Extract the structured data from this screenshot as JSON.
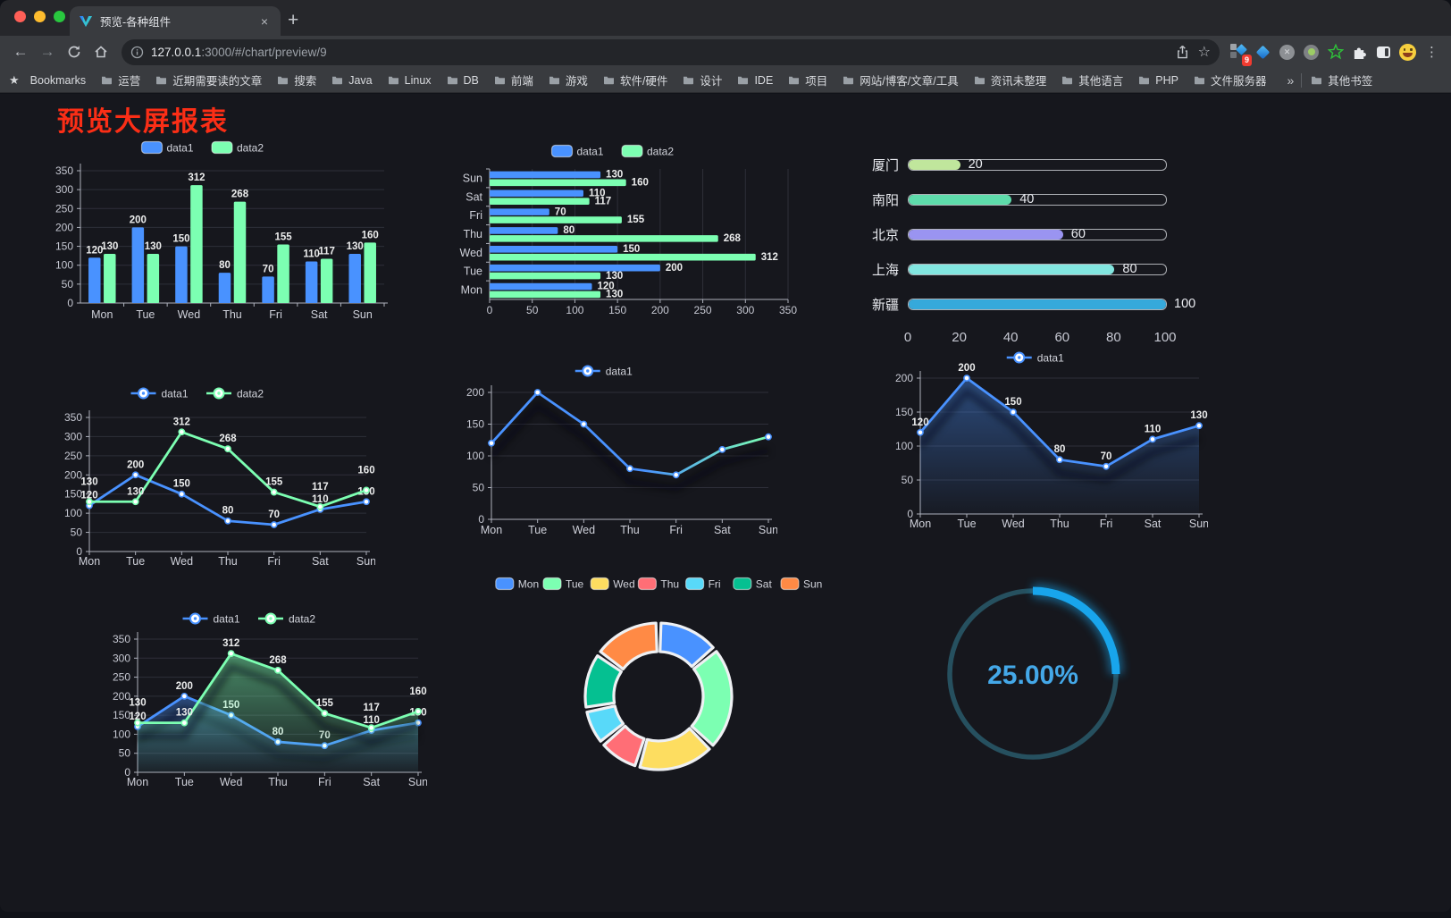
{
  "browser": {
    "tab_title": "预览-各种组件",
    "close_tab_glyph": "×",
    "new_tab_glyph": "+",
    "url_host": "127.0.0.1",
    "url_rest": ":3000/#/chart/preview/9",
    "extension_badge": "9",
    "menu_glyph": "⋮",
    "bookmarks_bar": {
      "label": "Bookmarks",
      "folders": [
        "运营",
        "近期需要读的文章",
        "搜索",
        "Java",
        "Linux",
        "DB",
        "前端",
        "游戏",
        "软件/硬件",
        "设计",
        "IDE",
        "项目",
        "网站/博客/文章/工具",
        "资讯未整理",
        "其他语言",
        "PHP",
        "文件服务器"
      ],
      "overflow": "»",
      "other": "其他书签"
    }
  },
  "page": {
    "title": "预览大屏报表",
    "title_color": "#fb2e16"
  },
  "theme": {
    "blue": "#4992ff",
    "green": "#7cffb2",
    "axis": "#aeb1bc",
    "tick_text": "#c6c8d2",
    "grid": "#2e2f39",
    "value_label": "#eceded"
  },
  "chart_data": [
    {
      "id": "c1",
      "type": "bar",
      "categories": [
        "Mon",
        "Tue",
        "Wed",
        "Thu",
        "Fri",
        "Sat",
        "Sun"
      ],
      "series": [
        {
          "name": "data1",
          "color": "#4992ff",
          "values": [
            120,
            200,
            150,
            80,
            70,
            110,
            130
          ]
        },
        {
          "name": "data2",
          "color": "#7cffb2",
          "values": [
            130,
            130,
            312,
            268,
            155,
            117,
            160
          ]
        }
      ],
      "ylim": [
        0,
        350
      ],
      "yticks": [
        0,
        50,
        100,
        150,
        200,
        250,
        300,
        350
      ],
      "legend_position": "top"
    },
    {
      "id": "c2",
      "type": "bar-horizontal",
      "categories": [
        "Mon",
        "Tue",
        "Wed",
        "Thu",
        "Fri",
        "Sat",
        "Sun"
      ],
      "category_order_top_to_bottom": [
        "Sun",
        "Sat",
        "Fri",
        "Thu",
        "Wed",
        "Tue",
        "Mon"
      ],
      "series": [
        {
          "name": "data1",
          "color": "#4992ff",
          "values": [
            120,
            200,
            150,
            80,
            70,
            110,
            130
          ]
        },
        {
          "name": "data2",
          "color": "#7cffb2",
          "values": [
            130,
            130,
            312,
            268,
            155,
            117,
            160
          ]
        }
      ],
      "xlim": [
        0,
        350
      ],
      "xticks": [
        0,
        50,
        100,
        150,
        200,
        250,
        300,
        350
      ],
      "legend_position": "top"
    },
    {
      "id": "c3",
      "type": "progress-bars",
      "max": 100,
      "xticks": [
        0,
        20,
        40,
        60,
        80,
        100
      ],
      "rows": [
        {
          "label": "厦门",
          "value": 20,
          "color": "#c0e69c"
        },
        {
          "label": "南阳",
          "value": 40,
          "color": "#5edcab"
        },
        {
          "label": "北京",
          "value": 60,
          "color": "#9a94f1"
        },
        {
          "label": "上海",
          "value": 80,
          "color": "#82e6e0"
        },
        {
          "label": "新疆",
          "value": 100,
          "color": "#36a9db"
        }
      ]
    },
    {
      "id": "c4",
      "type": "line",
      "categories": [
        "Mon",
        "Tue",
        "Wed",
        "Thu",
        "Fri",
        "Sat",
        "Sun"
      ],
      "series": [
        {
          "name": "data1",
          "color": "#4992ff",
          "values": [
            120,
            200,
            150,
            80,
            70,
            110,
            130
          ]
        },
        {
          "name": "data2",
          "color": "#7cffb2",
          "values": [
            130,
            130,
            312,
            268,
            155,
            117,
            160
          ]
        }
      ],
      "ylim": [
        0,
        350
      ],
      "yticks": [
        0,
        50,
        100,
        150,
        200,
        250,
        300,
        350
      ],
      "show_labels": true
    },
    {
      "id": "c5",
      "type": "line",
      "categories": [
        "Mon",
        "Tue",
        "Wed",
        "Thu",
        "Fri",
        "Sat",
        "Sun"
      ],
      "series": [
        {
          "name": "data1",
          "gradient": [
            "#4992ff",
            "#7cffb2"
          ],
          "values": [
            120,
            200,
            150,
            80,
            70,
            110,
            130
          ]
        }
      ],
      "ylim": [
        0,
        200
      ],
      "yticks": [
        0,
        50,
        100,
        150,
        200
      ],
      "show_labels": false,
      "shadow": true
    },
    {
      "id": "c6",
      "type": "area",
      "categories": [
        "Mon",
        "Tue",
        "Wed",
        "Thu",
        "Fri",
        "Sat",
        "Sun"
      ],
      "series": [
        {
          "name": "data1",
          "color": "#4992ff",
          "values": [
            120,
            200,
            150,
            80,
            70,
            110,
            130
          ]
        }
      ],
      "ylim": [
        0,
        200
      ],
      "yticks": [
        0,
        50,
        100,
        150,
        200
      ],
      "show_labels": true,
      "shadow": true
    },
    {
      "id": "c7",
      "type": "area",
      "categories": [
        "Mon",
        "Tue",
        "Wed",
        "Thu",
        "Fri",
        "Sat",
        "Sun"
      ],
      "series": [
        {
          "name": "data1",
          "color": "#4992ff",
          "values": [
            120,
            200,
            150,
            80,
            70,
            110,
            130
          ]
        },
        {
          "name": "data2",
          "color": "#7cffb2",
          "values": [
            130,
            130,
            312,
            268,
            155,
            117,
            160
          ]
        }
      ],
      "ylim": [
        0,
        350
      ],
      "yticks": [
        0,
        50,
        100,
        150,
        200,
        250,
        300,
        350
      ],
      "show_labels": true,
      "shadow": true
    },
    {
      "id": "c8",
      "type": "pie",
      "categories": [
        "Mon",
        "Tue",
        "Wed",
        "Thu",
        "Fri",
        "Sat",
        "Sun"
      ],
      "values": [
        120,
        200,
        150,
        80,
        70,
        110,
        130
      ],
      "colors": [
        "#4992ff",
        "#7cffb2",
        "#fddd60",
        "#ff6e76",
        "#58d9f9",
        "#05c091",
        "#ff8a45"
      ]
    },
    {
      "id": "c9",
      "type": "gauge",
      "label": "25.00%",
      "percent": 25,
      "color": "#18a5ec",
      "track": "#26505f",
      "text_color": "#44a8e8"
    }
  ]
}
